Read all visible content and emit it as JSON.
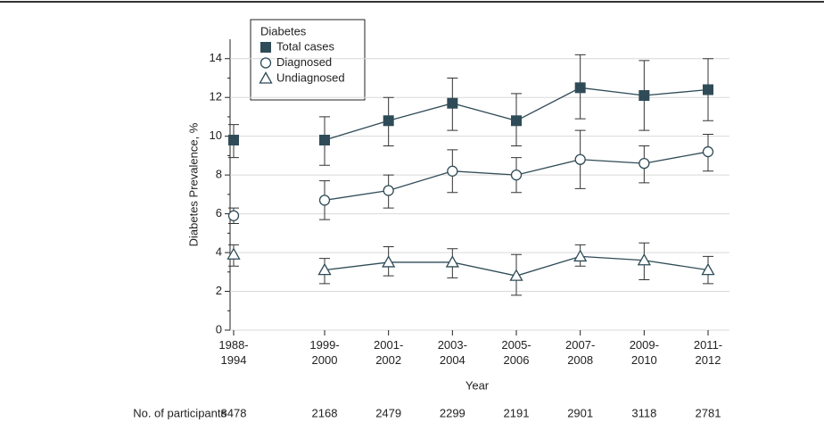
{
  "chart_data": {
    "type": "line",
    "y_label": "Diabetes Prevalence, %",
    "x_label": "Year",
    "legend_title": "Diabetes",
    "categories": [
      "1988-\n1994",
      "1999-\n2000",
      "2001-\n2002",
      "2003-\n2004",
      "2005-\n2006",
      "2007-\n2008",
      "2009-\n2010",
      "2011-\n2012"
    ],
    "unconnected_after": [
      0
    ],
    "series": [
      {
        "name": "Total cases",
        "marker": "square",
        "color": "#2f4b57",
        "values": [
          9.8,
          9.8,
          10.8,
          11.7,
          10.8,
          12.5,
          12.1,
          12.4
        ],
        "lower": [
          8.9,
          8.5,
          9.5,
          10.3,
          9.5,
          10.9,
          10.3,
          10.8
        ],
        "upper": [
          10.6,
          11.0,
          12.0,
          13.0,
          12.2,
          14.2,
          13.9,
          14.0
        ]
      },
      {
        "name": "Diagnosed",
        "marker": "circle",
        "color": "#2f4b57",
        "values": [
          5.9,
          6.7,
          7.2,
          8.2,
          8.0,
          8.8,
          8.6,
          9.2
        ],
        "lower": [
          5.5,
          5.7,
          6.3,
          7.1,
          7.1,
          7.3,
          7.6,
          8.2
        ],
        "upper": [
          6.3,
          7.7,
          8.0,
          9.3,
          8.9,
          10.3,
          9.5,
          10.1
        ]
      },
      {
        "name": "Undiagnosed",
        "marker": "triangle",
        "color": "#2f4b57",
        "values": [
          3.9,
          3.1,
          3.5,
          3.5,
          2.8,
          3.8,
          3.6,
          3.1
        ],
        "lower": [
          3.3,
          2.4,
          2.8,
          2.7,
          1.8,
          3.3,
          2.6,
          2.4
        ],
        "upper": [
          4.4,
          3.7,
          4.3,
          4.2,
          3.9,
          4.4,
          4.5,
          3.8
        ]
      }
    ],
    "ylim": [
      0,
      15
    ],
    "yticks": [
      0,
      2,
      4,
      6,
      8,
      10,
      12,
      14
    ],
    "yminorticks": [
      1,
      3,
      5,
      7,
      9,
      11,
      13
    ],
    "grid": true,
    "participants": {
      "label": "No. of participants",
      "values": [
        8478,
        2168,
        2479,
        2299,
        2191,
        2901,
        3118,
        2781
      ]
    }
  }
}
